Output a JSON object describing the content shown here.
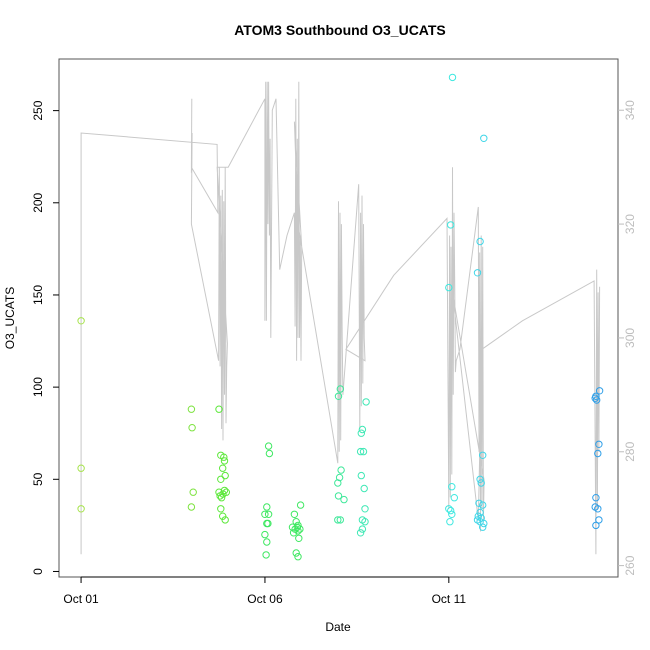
{
  "chart_data": {
    "type": "scatter",
    "title": "ATOM3 Southbound O3_UCATS",
    "xlabel": "Date",
    "ylabel": "O3_UCATS",
    "x_ticks": [
      {
        "value": 0,
        "label": "Oct 01"
      },
      {
        "value": 5,
        "label": "Oct 06"
      },
      {
        "value": 10,
        "label": "Oct 11"
      }
    ],
    "xlim": [
      -0.6,
      14.6
    ],
    "ylim": [
      -3,
      278
    ],
    "y_ticks": [
      0,
      50,
      100,
      150,
      200,
      250
    ],
    "y2lim": [
      258,
      349
    ],
    "y2_ticks": [
      260,
      280,
      300,
      320,
      340
    ],
    "grid": false,
    "colors": {
      "frame": "#555555",
      "secondary_line": "#c8c8c8",
      "secondary_axis": "#bdbdbd"
    },
    "series": [
      {
        "kind": "points",
        "axis": "left",
        "values": [
          {
            "x": 0.0,
            "y": 136,
            "color": "#a6e34b"
          },
          {
            "x": 0.0,
            "y": 56,
            "color": "#a6e34b"
          },
          {
            "x": 0.0,
            "y": 34,
            "color": "#a6e34b"
          },
          {
            "x": 3.0,
            "y": 88,
            "color": "#7de33f"
          },
          {
            "x": 3.02,
            "y": 78,
            "color": "#7de33f"
          },
          {
            "x": 3.05,
            "y": 43,
            "color": "#7de33f"
          },
          {
            "x": 3.0,
            "y": 35,
            "color": "#7de33f"
          },
          {
            "x": 3.75,
            "y": 88,
            "color": "#5ce83a"
          },
          {
            "x": 3.8,
            "y": 63,
            "color": "#5ce83a"
          },
          {
            "x": 3.88,
            "y": 62,
            "color": "#5ce83a"
          },
          {
            "x": 3.9,
            "y": 60,
            "color": "#5ce83a"
          },
          {
            "x": 3.85,
            "y": 56,
            "color": "#5ce83a"
          },
          {
            "x": 3.92,
            "y": 52,
            "color": "#5ce83a"
          },
          {
            "x": 3.8,
            "y": 50,
            "color": "#5ce83a"
          },
          {
            "x": 3.75,
            "y": 43,
            "color": "#5ce83a"
          },
          {
            "x": 3.78,
            "y": 41,
            "color": "#5ce83a"
          },
          {
            "x": 3.82,
            "y": 40,
            "color": "#5ce83a"
          },
          {
            "x": 3.86,
            "y": 42,
            "color": "#5ce83a"
          },
          {
            "x": 3.9,
            "y": 44,
            "color": "#5ce83a"
          },
          {
            "x": 3.95,
            "y": 43,
            "color": "#5ce83a"
          },
          {
            "x": 3.8,
            "y": 34,
            "color": "#5ce83a"
          },
          {
            "x": 3.85,
            "y": 30,
            "color": "#5ce83a"
          },
          {
            "x": 3.92,
            "y": 28,
            "color": "#5ce83a"
          },
          {
            "x": 5.1,
            "y": 68,
            "color": "#3fe862"
          },
          {
            "x": 5.12,
            "y": 64,
            "color": "#3fe862"
          },
          {
            "x": 5.05,
            "y": 35,
            "color": "#3fe862"
          },
          {
            "x": 5.0,
            "y": 31,
            "color": "#3fe862"
          },
          {
            "x": 5.1,
            "y": 31,
            "color": "#3fe862"
          },
          {
            "x": 5.05,
            "y": 26,
            "color": "#3fe862"
          },
          {
            "x": 5.08,
            "y": 26,
            "color": "#3fe862"
          },
          {
            "x": 5.0,
            "y": 20,
            "color": "#3fe862"
          },
          {
            "x": 5.05,
            "y": 16,
            "color": "#3fe862"
          },
          {
            "x": 5.03,
            "y": 9,
            "color": "#3fe862"
          },
          {
            "x": 5.8,
            "y": 31,
            "color": "#3fe862"
          },
          {
            "x": 5.85,
            "y": 27,
            "color": "#3fe862"
          },
          {
            "x": 5.9,
            "y": 25,
            "color": "#3fe862"
          },
          {
            "x": 5.75,
            "y": 24,
            "color": "#3fe862"
          },
          {
            "x": 5.82,
            "y": 23,
            "color": "#3fe862"
          },
          {
            "x": 5.88,
            "y": 24,
            "color": "#3fe862"
          },
          {
            "x": 5.95,
            "y": 23,
            "color": "#3fe862"
          },
          {
            "x": 5.78,
            "y": 21,
            "color": "#3fe862"
          },
          {
            "x": 5.9,
            "y": 22,
            "color": "#3fe862"
          },
          {
            "x": 5.92,
            "y": 18,
            "color": "#3fe862"
          },
          {
            "x": 5.97,
            "y": 36,
            "color": "#3fe862"
          },
          {
            "x": 5.85,
            "y": 10,
            "color": "#3fe862"
          },
          {
            "x": 5.9,
            "y": 8,
            "color": "#3fe862"
          },
          {
            "x": 7.05,
            "y": 99,
            "color": "#3fe89a"
          },
          {
            "x": 7.0,
            "y": 95,
            "color": "#3fe89a"
          },
          {
            "x": 7.07,
            "y": 55,
            "color": "#3fe89a"
          },
          {
            "x": 7.03,
            "y": 51,
            "color": "#3fe89a"
          },
          {
            "x": 6.98,
            "y": 48,
            "color": "#3fe89a"
          },
          {
            "x": 7.0,
            "y": 41,
            "color": "#3fe89a"
          },
          {
            "x": 7.15,
            "y": 39,
            "color": "#3fe89a"
          },
          {
            "x": 6.98,
            "y": 28,
            "color": "#3fe89a"
          },
          {
            "x": 7.05,
            "y": 28,
            "color": "#3fe89a"
          },
          {
            "x": 7.75,
            "y": 92,
            "color": "#3fe8b5"
          },
          {
            "x": 7.65,
            "y": 77,
            "color": "#3fe8b5"
          },
          {
            "x": 7.62,
            "y": 75,
            "color": "#3fe8b5"
          },
          {
            "x": 7.6,
            "y": 65,
            "color": "#3fe8b5"
          },
          {
            "x": 7.68,
            "y": 65,
            "color": "#3fe8b5"
          },
          {
            "x": 7.62,
            "y": 52,
            "color": "#3fe8b5"
          },
          {
            "x": 7.7,
            "y": 45,
            "color": "#3fe8b5"
          },
          {
            "x": 7.72,
            "y": 34,
            "color": "#3fe8b5"
          },
          {
            "x": 7.65,
            "y": 28,
            "color": "#3fe8b5"
          },
          {
            "x": 7.72,
            "y": 27,
            "color": "#3fe8b5"
          },
          {
            "x": 7.65,
            "y": 23,
            "color": "#3fe8b5"
          },
          {
            "x": 7.6,
            "y": 21,
            "color": "#3fe8b5"
          },
          {
            "x": 10.1,
            "y": 268,
            "color": "#3fe8e0"
          },
          {
            "x": 10.05,
            "y": 188,
            "color": "#3fe8e0"
          },
          {
            "x": 10.0,
            "y": 154,
            "color": "#3fe8e0"
          },
          {
            "x": 10.08,
            "y": 46,
            "color": "#3fe8e0"
          },
          {
            "x": 10.15,
            "y": 40,
            "color": "#3fe8e0"
          },
          {
            "x": 10.0,
            "y": 34,
            "color": "#3fe8e0"
          },
          {
            "x": 10.05,
            "y": 33,
            "color": "#3fe8e0"
          },
          {
            "x": 10.08,
            "y": 31,
            "color": "#3fe8e0"
          },
          {
            "x": 10.03,
            "y": 27,
            "color": "#3fe8e0"
          },
          {
            "x": 10.95,
            "y": 235,
            "color": "#3fd6e8"
          },
          {
            "x": 10.85,
            "y": 179,
            "color": "#3fd6e8"
          },
          {
            "x": 10.78,
            "y": 162,
            "color": "#3fd6e8"
          },
          {
            "x": 10.92,
            "y": 63,
            "color": "#3fd6e8"
          },
          {
            "x": 10.85,
            "y": 50,
            "color": "#3fd6e8"
          },
          {
            "x": 10.88,
            "y": 48,
            "color": "#3fd6e8"
          },
          {
            "x": 10.82,
            "y": 37,
            "color": "#3fd6e8"
          },
          {
            "x": 10.92,
            "y": 36,
            "color": "#3fd6e8"
          },
          {
            "x": 10.85,
            "y": 32,
            "color": "#3fd6e8"
          },
          {
            "x": 10.8,
            "y": 30,
            "color": "#3fd6e8"
          },
          {
            "x": 10.88,
            "y": 29,
            "color": "#3fd6e8"
          },
          {
            "x": 10.78,
            "y": 28,
            "color": "#3fd6e8"
          },
          {
            "x": 10.85,
            "y": 27,
            "color": "#3fd6e8"
          },
          {
            "x": 10.95,
            "y": 26,
            "color": "#3fd6e8"
          },
          {
            "x": 10.92,
            "y": 24,
            "color": "#3fd6e8"
          },
          {
            "x": 14.1,
            "y": 98,
            "color": "#2f9fe8"
          },
          {
            "x": 14.0,
            "y": 95,
            "color": "#2f9fe8"
          },
          {
            "x": 13.98,
            "y": 94,
            "color": "#2f9fe8"
          },
          {
            "x": 14.02,
            "y": 93,
            "color": "#2f9fe8"
          },
          {
            "x": 14.08,
            "y": 69,
            "color": "#2f9fe8"
          },
          {
            "x": 14.05,
            "y": 64,
            "color": "#2f9fe8"
          },
          {
            "x": 14.0,
            "y": 40,
            "color": "#2f9fe8"
          },
          {
            "x": 13.98,
            "y": 35,
            "color": "#2f9fe8"
          },
          {
            "x": 14.05,
            "y": 34,
            "color": "#2f9fe8"
          },
          {
            "x": 14.08,
            "y": 28,
            "color": "#2f9fe8"
          },
          {
            "x": 14.0,
            "y": 25,
            "color": "#2f9fe8"
          }
        ]
      },
      {
        "kind": "line",
        "axis": "right",
        "color": "#c8c8c8",
        "values": [
          {
            "x": 0.0,
            "y": 262
          },
          {
            "x": 0.0,
            "y": 336
          },
          {
            "x": 3.7,
            "y": 334
          },
          {
            "x": 3.72,
            "y": 322
          },
          {
            "x": 3.0,
            "y": 330
          },
          {
            "x": 3.01,
            "y": 342
          },
          {
            "x": 3.0,
            "y": 329
          },
          {
            "x": 3.02,
            "y": 336
          },
          {
            "x": 3.0,
            "y": 320
          },
          {
            "x": 3.74,
            "y": 296
          },
          {
            "x": 3.76,
            "y": 330
          },
          {
            "x": 3.78,
            "y": 295
          },
          {
            "x": 3.8,
            "y": 325
          },
          {
            "x": 3.82,
            "y": 284
          },
          {
            "x": 3.84,
            "y": 326
          },
          {
            "x": 3.86,
            "y": 282
          },
          {
            "x": 3.88,
            "y": 324
          },
          {
            "x": 3.9,
            "y": 290
          },
          {
            "x": 3.92,
            "y": 330
          },
          {
            "x": 3.94,
            "y": 285
          },
          {
            "x": 3.96,
            "y": 295
          },
          {
            "x": 3.98,
            "y": 299
          },
          {
            "x": 3.7,
            "y": 330
          },
          {
            "x": 4.0,
            "y": 330
          },
          {
            "x": 5.0,
            "y": 342
          },
          {
            "x": 5.0,
            "y": 303
          },
          {
            "x": 5.02,
            "y": 345
          },
          {
            "x": 5.04,
            "y": 303
          },
          {
            "x": 5.06,
            "y": 345
          },
          {
            "x": 5.08,
            "y": 320
          },
          {
            "x": 5.1,
            "y": 345
          },
          {
            "x": 5.12,
            "y": 318
          },
          {
            "x": 5.14,
            "y": 335
          },
          {
            "x": 5.16,
            "y": 300
          },
          {
            "x": 5.2,
            "y": 340
          },
          {
            "x": 5.3,
            "y": 342
          },
          {
            "x": 5.4,
            "y": 312
          },
          {
            "x": 5.6,
            "y": 318
          },
          {
            "x": 5.8,
            "y": 322
          },
          {
            "x": 5.82,
            "y": 302
          },
          {
            "x": 5.84,
            "y": 342
          },
          {
            "x": 5.86,
            "y": 296
          },
          {
            "x": 5.88,
            "y": 335
          },
          {
            "x": 5.9,
            "y": 300
          },
          {
            "x": 5.92,
            "y": 345
          },
          {
            "x": 5.94,
            "y": 300
          },
          {
            "x": 5.96,
            "y": 318
          },
          {
            "x": 5.98,
            "y": 296
          },
          {
            "x": 6.0,
            "y": 316
          },
          {
            "x": 5.8,
            "y": 338
          },
          {
            "x": 5.9,
            "y": 320
          },
          {
            "x": 6.0,
            "y": 316
          },
          {
            "x": 6.98,
            "y": 278
          },
          {
            "x": 7.0,
            "y": 324
          },
          {
            "x": 7.02,
            "y": 280
          },
          {
            "x": 7.04,
            "y": 322
          },
          {
            "x": 7.06,
            "y": 282
          },
          {
            "x": 7.08,
            "y": 320
          },
          {
            "x": 7.1,
            "y": 300
          },
          {
            "x": 7.12,
            "y": 290
          },
          {
            "x": 7.2,
            "y": 297
          },
          {
            "x": 7.55,
            "y": 327
          },
          {
            "x": 7.58,
            "y": 284
          },
          {
            "x": 7.6,
            "y": 322
          },
          {
            "x": 7.62,
            "y": 288
          },
          {
            "x": 7.64,
            "y": 325
          },
          {
            "x": 7.66,
            "y": 292
          },
          {
            "x": 7.68,
            "y": 320
          },
          {
            "x": 7.7,
            "y": 300
          },
          {
            "x": 7.72,
            "y": 296
          },
          {
            "x": 7.2,
            "y": 298
          },
          {
            "x": 8.5,
            "y": 311
          },
          {
            "x": 9.95,
            "y": 321
          },
          {
            "x": 10.0,
            "y": 270
          },
          {
            "x": 10.02,
            "y": 318
          },
          {
            "x": 10.04,
            "y": 272
          },
          {
            "x": 10.06,
            "y": 316
          },
          {
            "x": 10.08,
            "y": 276
          },
          {
            "x": 10.1,
            "y": 330
          },
          {
            "x": 10.12,
            "y": 290
          },
          {
            "x": 10.14,
            "y": 322
          },
          {
            "x": 10.16,
            "y": 310
          },
          {
            "x": 10.18,
            "y": 294
          },
          {
            "x": 10.2,
            "y": 296
          },
          {
            "x": 10.3,
            "y": 298
          },
          {
            "x": 10.8,
            "y": 323
          },
          {
            "x": 10.82,
            "y": 280
          },
          {
            "x": 10.84,
            "y": 315
          },
          {
            "x": 10.86,
            "y": 266
          },
          {
            "x": 10.88,
            "y": 318
          },
          {
            "x": 10.9,
            "y": 270
          },
          {
            "x": 10.92,
            "y": 316
          },
          {
            "x": 10.94,
            "y": 268
          },
          {
            "x": 10.96,
            "y": 275
          },
          {
            "x": 10.1,
            "y": 308
          },
          {
            "x": 10.8,
            "y": 268
          },
          {
            "x": 10.9,
            "y": 298
          },
          {
            "x": 12.0,
            "y": 303
          },
          {
            "x": 13.95,
            "y": 310
          },
          {
            "x": 14.0,
            "y": 262
          },
          {
            "x": 14.02,
            "y": 312
          },
          {
            "x": 14.04,
            "y": 270
          },
          {
            "x": 14.06,
            "y": 308
          },
          {
            "x": 14.08,
            "y": 280
          },
          {
            "x": 14.1,
            "y": 309
          }
        ]
      }
    ]
  }
}
